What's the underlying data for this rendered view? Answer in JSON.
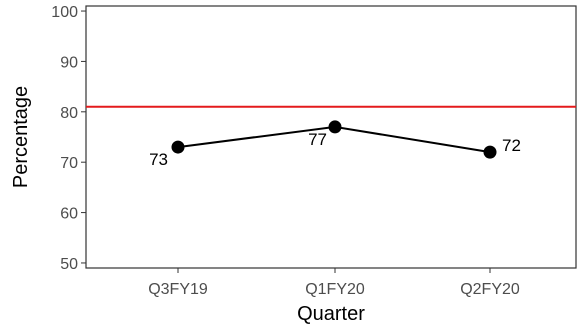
{
  "chart_data": {
    "type": "line",
    "title": "",
    "xlabel": "Quarter",
    "ylabel": "Percentage",
    "categories": [
      "Q3FY19",
      "Q1FY20",
      "Q2FY20"
    ],
    "series": [
      {
        "values": [
          73,
          77,
          72
        ],
        "labels": [
          "73",
          "77",
          "72"
        ],
        "color": "#000000"
      }
    ],
    "reference_line": {
      "y": 81,
      "color": "#e41a1c"
    },
    "ylim": [
      49,
      101
    ],
    "yticks": [
      50,
      60,
      70,
      80,
      90,
      100
    ],
    "ytick_labels": [
      "50",
      "60",
      "70",
      "80",
      "90",
      "100"
    ],
    "grid": false,
    "legend": "none"
  }
}
